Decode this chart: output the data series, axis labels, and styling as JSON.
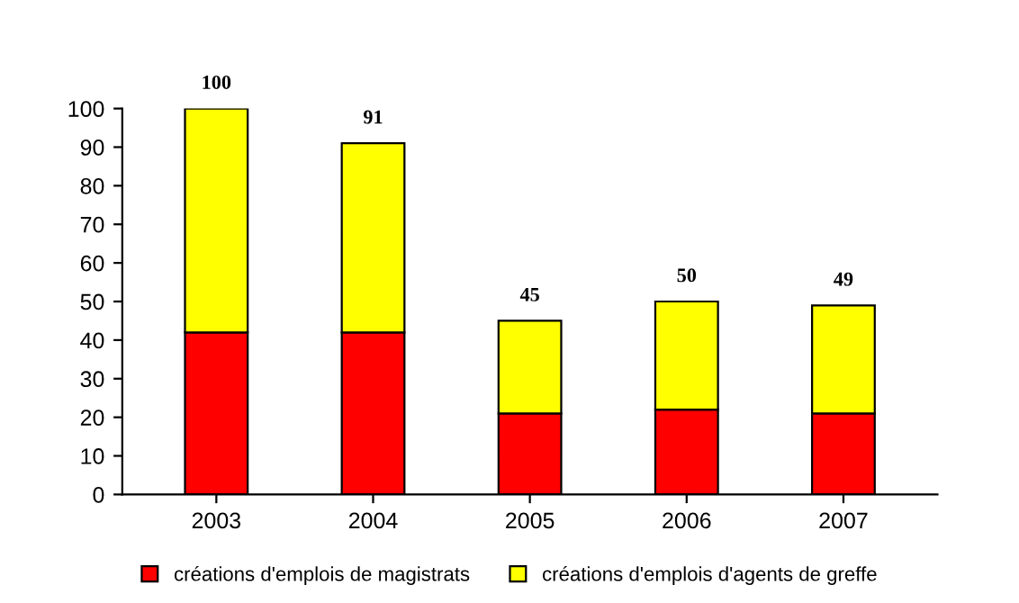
{
  "chart_data": {
    "type": "bar",
    "stacked": true,
    "categories": [
      "2003",
      "2004",
      "2005",
      "2006",
      "2007"
    ],
    "series": [
      {
        "name": "créations d'emplois de magistrats",
        "color": "#ff0000",
        "values": [
          42,
          42,
          21,
          22,
          21
        ]
      },
      {
        "name": "créations d'emplois d'agents de greffe",
        "color": "#ffff00",
        "values": [
          58,
          49,
          24,
          28,
          28
        ]
      }
    ],
    "totals": [
      "100",
      "91",
      "45",
      "50",
      "49"
    ],
    "ylim": [
      0,
      100
    ],
    "yticks": [
      0,
      10,
      20,
      30,
      40,
      50,
      60,
      70,
      80,
      90,
      100
    ],
    "grid": false,
    "legend": "bottom"
  }
}
